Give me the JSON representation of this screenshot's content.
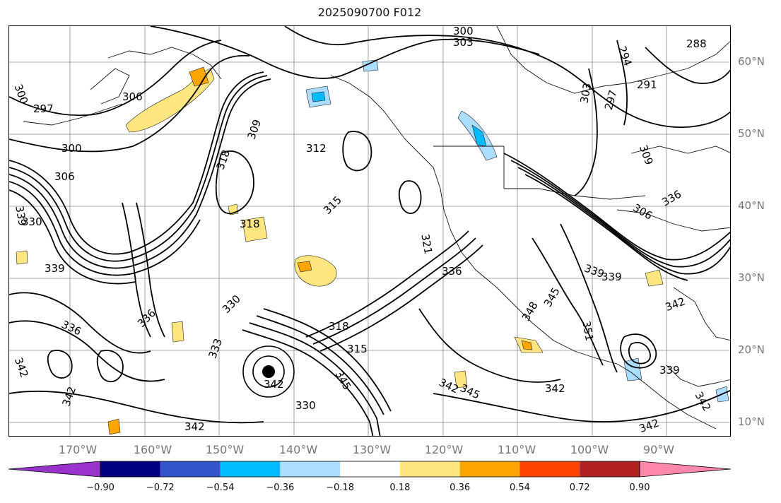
{
  "title": "2025090700 F012",
  "lat_labels": [
    "60°N",
    "50°N",
    "40°N",
    "30°N",
    "20°N",
    "10°N"
  ],
  "lon_labels": [
    "170°W",
    "160°W",
    "150°W",
    "140°W",
    "130°W",
    "120°W",
    "110°W",
    "100°W",
    "90°W"
  ],
  "contour_labels": [
    "300",
    "303",
    "300",
    "297",
    "306",
    "300",
    "306",
    "339",
    "330",
    "318",
    "309",
    "312",
    "315",
    "318",
    "321",
    "336",
    "339",
    "336",
    "330",
    "342",
    "342",
    "345",
    "342",
    "330",
    "333",
    "318",
    "315",
    "342",
    "345",
    "342",
    "351",
    "348",
    "345",
    "342",
    "339",
    "336",
    "306",
    "309",
    "303",
    "297",
    "294",
    "291",
    "288",
    "339",
    "342",
    "342",
    "339",
    "336",
    "342"
  ],
  "colorbar": {
    "ticks": [
      "−0.90",
      "−0.72",
      "−0.54",
      "−0.36",
      "−0.18",
      "0.18",
      "0.36",
      "0.54",
      "0.72",
      "0.90"
    ],
    "colors": [
      "#9933cc",
      "#000080",
      "#3355cc",
      "#00bbff",
      "#aaddff",
      "#ffffff",
      "#ffe680",
      "#ffa500",
      "#ff4500",
      "#b22222",
      "#ff88aa"
    ]
  },
  "marker": "hurricane-center"
}
